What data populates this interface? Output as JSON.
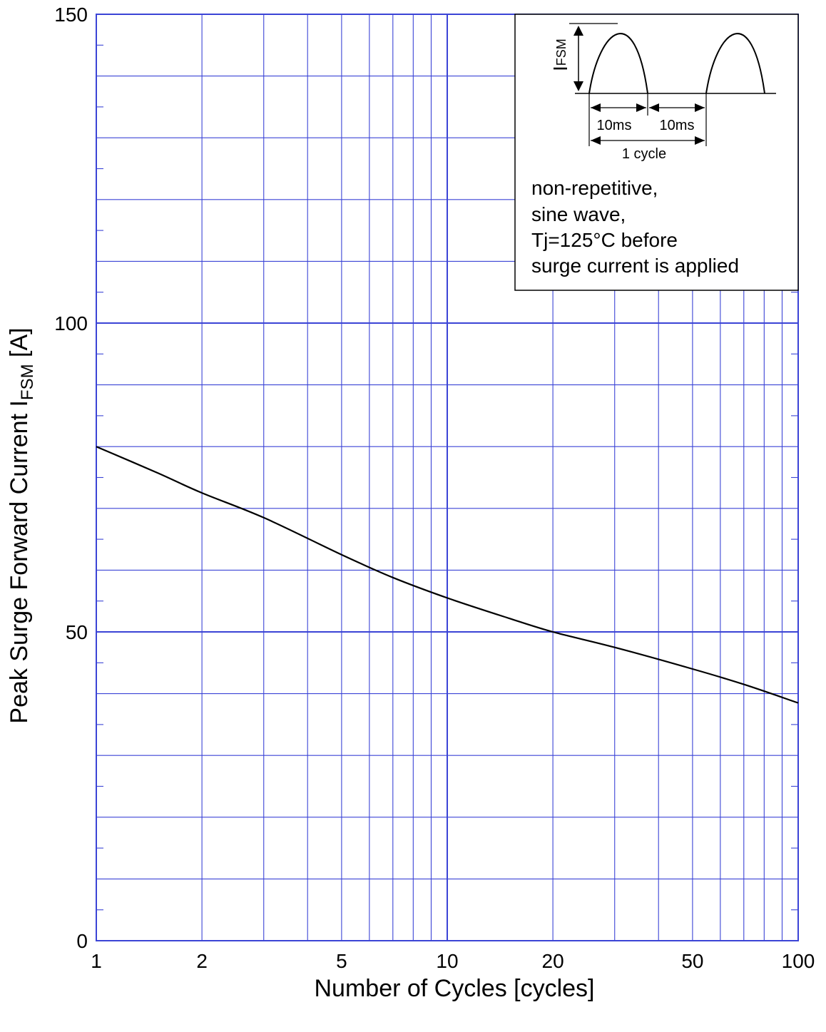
{
  "chart_data": {
    "type": "line",
    "title": "",
    "xlabel": "Number of Cycles  [cycles]",
    "ylabel": {
      "main": "Peak Surge Forward Current  I",
      "subscript": "FSM",
      "unit": " [A]"
    },
    "xscale": "log",
    "xlim": [
      1,
      100
    ],
    "ylim": [
      0,
      150
    ],
    "x_ticks": [
      1,
      2,
      5,
      10,
      20,
      50,
      100
    ],
    "x_tick_labels": [
      "1",
      "2",
      "5",
      "10",
      "20",
      "50",
      "100"
    ],
    "y_ticks": [
      0,
      50,
      100,
      150
    ],
    "y_tick_labels": [
      "0",
      "50",
      "100",
      "150"
    ],
    "grid": true,
    "grid_color": "#3b44d6",
    "line_color": "#000000",
    "series": [
      {
        "x": [
          1,
          1.5,
          2,
          3,
          5,
          7,
          10,
          15,
          20,
          30,
          50,
          70,
          100
        ],
        "values": [
          80,
          75.7,
          72.5,
          68.5,
          62.5,
          58.8,
          55.5,
          52.2,
          50,
          47.5,
          44,
          41.5,
          38.5
        ]
      }
    ],
    "inset": {
      "waveform_label_main": "I",
      "waveform_label_sub": "FSM",
      "interval_1": "10ms",
      "interval_2": "10ms",
      "cycle_label": "1 cycle",
      "notes": [
        "non-repetitive,",
        "sine wave,",
        "Tj=125°C before",
        "surge current is applied"
      ]
    }
  }
}
